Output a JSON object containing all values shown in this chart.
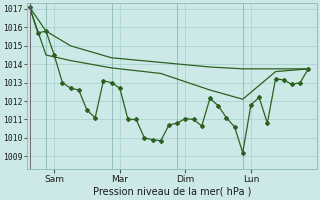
{
  "background_color": "#cce9e8",
  "grid_color": "#aad4d0",
  "line_color": "#2d6020",
  "xlabel": "Pression niveau de la mer( hPa )",
  "ylim": [
    1008.3,
    1017.3
  ],
  "yticks": [
    1009,
    1010,
    1011,
    1012,
    1013,
    1014,
    1015,
    1016,
    1017
  ],
  "x_tick_positions": [
    2,
    10,
    18,
    26,
    34
  ],
  "x_tick_labels": [
    "Sam",
    "Mar",
    "Dim",
    "Lun",
    ""
  ],
  "x_vline_positions": [
    2,
    10,
    18,
    26,
    34
  ],
  "trend1_x": [
    0,
    2,
    5,
    10,
    16,
    22,
    26,
    30,
    34
  ],
  "trend1_y": [
    1017.1,
    1015.8,
    1015.0,
    1014.35,
    1014.1,
    1013.85,
    1013.75,
    1013.75,
    1013.75
  ],
  "trend2_x": [
    0,
    2,
    5,
    10,
    16,
    22,
    26,
    30,
    34
  ],
  "trend2_y": [
    1017.1,
    1014.5,
    1014.2,
    1013.8,
    1013.5,
    1012.6,
    1012.1,
    1013.6,
    1013.75
  ],
  "jagged_x": [
    0,
    1,
    2,
    3,
    4,
    5,
    6,
    7,
    8,
    9,
    10,
    11,
    12,
    13,
    14,
    15,
    16,
    17,
    18,
    19,
    20,
    21,
    22,
    23,
    24,
    25,
    26,
    27,
    28,
    29,
    30,
    31,
    32,
    33,
    34
  ],
  "jagged_y": [
    1017.1,
    1015.7,
    1015.8,
    1014.5,
    1013.0,
    1012.7,
    1012.6,
    1011.5,
    1011.1,
    1013.1,
    1013.0,
    1012.7,
    1011.0,
    1011.0,
    1010.0,
    1009.9,
    1009.85,
    1010.7,
    1010.8,
    1011.05,
    1011.0,
    1010.65,
    1012.15,
    1011.75,
    1011.1,
    1010.6,
    1009.2,
    1011.8,
    1012.2,
    1010.8,
    1013.2,
    1013.15,
    1012.9,
    1013.0,
    1013.75
  ]
}
